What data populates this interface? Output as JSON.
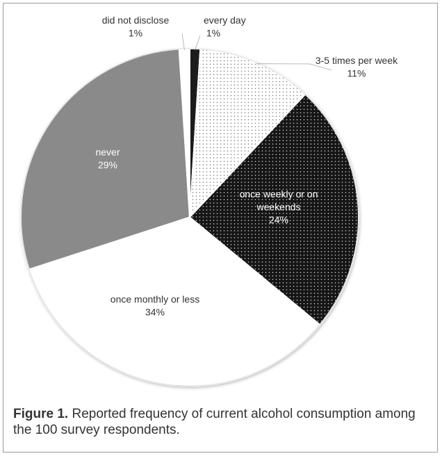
{
  "chart_data": {
    "type": "pie",
    "title": "",
    "categories": [
      "every day",
      "3-5 times per week",
      "once weekly or on weekends",
      "once monthly or less",
      "never",
      "did not disclose"
    ],
    "values": [
      1,
      11,
      24,
      34,
      29,
      1
    ],
    "percent_labels": [
      "1%",
      "11%",
      "24%",
      "34%",
      "29%",
      "1%"
    ],
    "label_lines": [
      [
        "every day"
      ],
      [
        "3-5 times per week"
      ],
      [
        "once weekly or on",
        "weekends"
      ],
      [
        "once monthly or less"
      ],
      [
        "never"
      ],
      [
        "did not disclose"
      ]
    ],
    "slice_fills": [
      "#1a1a1a",
      "#ffffff",
      "#161616",
      "#ffffff",
      "#8a8a8a",
      "#ffffff"
    ],
    "label_colors": [
      "#333333",
      "#333333",
      "#ffffff",
      "#333333",
      "#ffffff",
      "#333333"
    ],
    "start_angle_deg": 0,
    "direction": "clockwise",
    "legend": "none"
  },
  "caption": {
    "label": "Figure 1.",
    "text": " Reported frequency of current alcohol consumption among the 100 survey respondents."
  }
}
